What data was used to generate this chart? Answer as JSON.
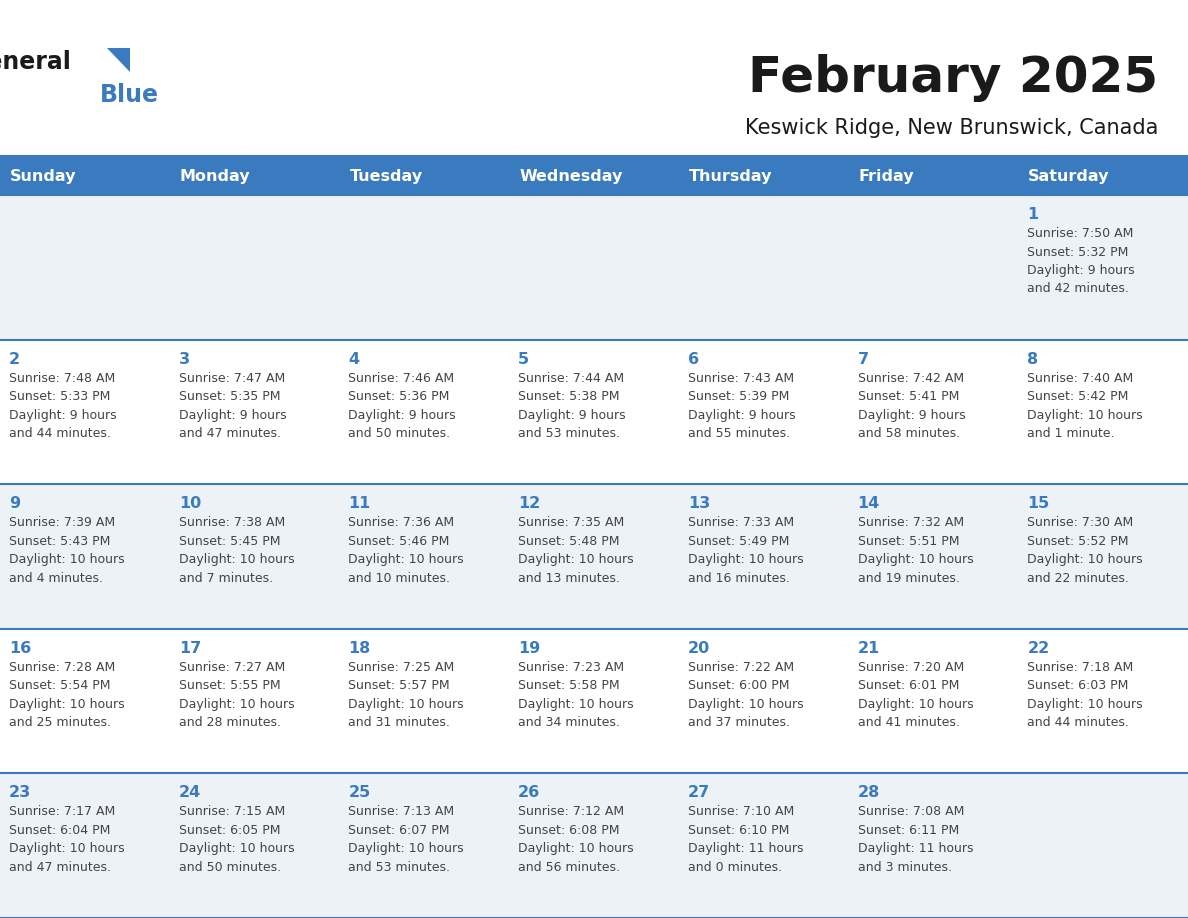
{
  "title": "February 2025",
  "subtitle": "Keswick Ridge, New Brunswick, Canada",
  "header_bg_color": "#3a7abf",
  "header_text_color": "#ffffff",
  "day_names": [
    "Sunday",
    "Monday",
    "Tuesday",
    "Wednesday",
    "Thursday",
    "Friday",
    "Saturday"
  ],
  "title_color": "#1a1a1a",
  "subtitle_color": "#1a1a1a",
  "cell_line_color": "#3a7abf",
  "row0_color": "#f2f6fa",
  "row1_color": "#ffffff",
  "text_color": "#444444",
  "days": [
    {
      "day": 1,
      "col": 6,
      "row": 0,
      "sunrise": "7:50 AM",
      "sunset": "5:32 PM",
      "daylight": "9 hours and 42 minutes."
    },
    {
      "day": 2,
      "col": 0,
      "row": 1,
      "sunrise": "7:48 AM",
      "sunset": "5:33 PM",
      "daylight": "9 hours and 44 minutes."
    },
    {
      "day": 3,
      "col": 1,
      "row": 1,
      "sunrise": "7:47 AM",
      "sunset": "5:35 PM",
      "daylight": "9 hours and 47 minutes."
    },
    {
      "day": 4,
      "col": 2,
      "row": 1,
      "sunrise": "7:46 AM",
      "sunset": "5:36 PM",
      "daylight": "9 hours and 50 minutes."
    },
    {
      "day": 5,
      "col": 3,
      "row": 1,
      "sunrise": "7:44 AM",
      "sunset": "5:38 PM",
      "daylight": "9 hours and 53 minutes."
    },
    {
      "day": 6,
      "col": 4,
      "row": 1,
      "sunrise": "7:43 AM",
      "sunset": "5:39 PM",
      "daylight": "9 hours and 55 minutes."
    },
    {
      "day": 7,
      "col": 5,
      "row": 1,
      "sunrise": "7:42 AM",
      "sunset": "5:41 PM",
      "daylight": "9 hours and 58 minutes."
    },
    {
      "day": 8,
      "col": 6,
      "row": 1,
      "sunrise": "7:40 AM",
      "sunset": "5:42 PM",
      "daylight": "10 hours and 1 minute."
    },
    {
      "day": 9,
      "col": 0,
      "row": 2,
      "sunrise": "7:39 AM",
      "sunset": "5:43 PM",
      "daylight": "10 hours and 4 minutes."
    },
    {
      "day": 10,
      "col": 1,
      "row": 2,
      "sunrise": "7:38 AM",
      "sunset": "5:45 PM",
      "daylight": "10 hours and 7 minutes."
    },
    {
      "day": 11,
      "col": 2,
      "row": 2,
      "sunrise": "7:36 AM",
      "sunset": "5:46 PM",
      "daylight": "10 hours and 10 minutes."
    },
    {
      "day": 12,
      "col": 3,
      "row": 2,
      "sunrise": "7:35 AM",
      "sunset": "5:48 PM",
      "daylight": "10 hours and 13 minutes."
    },
    {
      "day": 13,
      "col": 4,
      "row": 2,
      "sunrise": "7:33 AM",
      "sunset": "5:49 PM",
      "daylight": "10 hours and 16 minutes."
    },
    {
      "day": 14,
      "col": 5,
      "row": 2,
      "sunrise": "7:32 AM",
      "sunset": "5:51 PM",
      "daylight": "10 hours and 19 minutes."
    },
    {
      "day": 15,
      "col": 6,
      "row": 2,
      "sunrise": "7:30 AM",
      "sunset": "5:52 PM",
      "daylight": "10 hours and 22 minutes."
    },
    {
      "day": 16,
      "col": 0,
      "row": 3,
      "sunrise": "7:28 AM",
      "sunset": "5:54 PM",
      "daylight": "10 hours and 25 minutes."
    },
    {
      "day": 17,
      "col": 1,
      "row": 3,
      "sunrise": "7:27 AM",
      "sunset": "5:55 PM",
      "daylight": "10 hours and 28 minutes."
    },
    {
      "day": 18,
      "col": 2,
      "row": 3,
      "sunrise": "7:25 AM",
      "sunset": "5:57 PM",
      "daylight": "10 hours and 31 minutes."
    },
    {
      "day": 19,
      "col": 3,
      "row": 3,
      "sunrise": "7:23 AM",
      "sunset": "5:58 PM",
      "daylight": "10 hours and 34 minutes."
    },
    {
      "day": 20,
      "col": 4,
      "row": 3,
      "sunrise": "7:22 AM",
      "sunset": "6:00 PM",
      "daylight": "10 hours and 37 minutes."
    },
    {
      "day": 21,
      "col": 5,
      "row": 3,
      "sunrise": "7:20 AM",
      "sunset": "6:01 PM",
      "daylight": "10 hours and 41 minutes."
    },
    {
      "day": 22,
      "col": 6,
      "row": 3,
      "sunrise": "7:18 AM",
      "sunset": "6:03 PM",
      "daylight": "10 hours and 44 minutes."
    },
    {
      "day": 23,
      "col": 0,
      "row": 4,
      "sunrise": "7:17 AM",
      "sunset": "6:04 PM",
      "daylight": "10 hours and 47 minutes."
    },
    {
      "day": 24,
      "col": 1,
      "row": 4,
      "sunrise": "7:15 AM",
      "sunset": "6:05 PM",
      "daylight": "10 hours and 50 minutes."
    },
    {
      "day": 25,
      "col": 2,
      "row": 4,
      "sunrise": "7:13 AM",
      "sunset": "6:07 PM",
      "daylight": "10 hours and 53 minutes."
    },
    {
      "day": 26,
      "col": 3,
      "row": 4,
      "sunrise": "7:12 AM",
      "sunset": "6:08 PM",
      "daylight": "10 hours and 56 minutes."
    },
    {
      "day": 27,
      "col": 4,
      "row": 4,
      "sunrise": "7:10 AM",
      "sunset": "6:10 PM",
      "daylight": "11 hours and 0 minutes."
    },
    {
      "day": 28,
      "col": 5,
      "row": 4,
      "sunrise": "7:08 AM",
      "sunset": "6:11 PM",
      "daylight": "11 hours and 3 minutes."
    }
  ],
  "num_rows": 5,
  "num_cols": 7
}
